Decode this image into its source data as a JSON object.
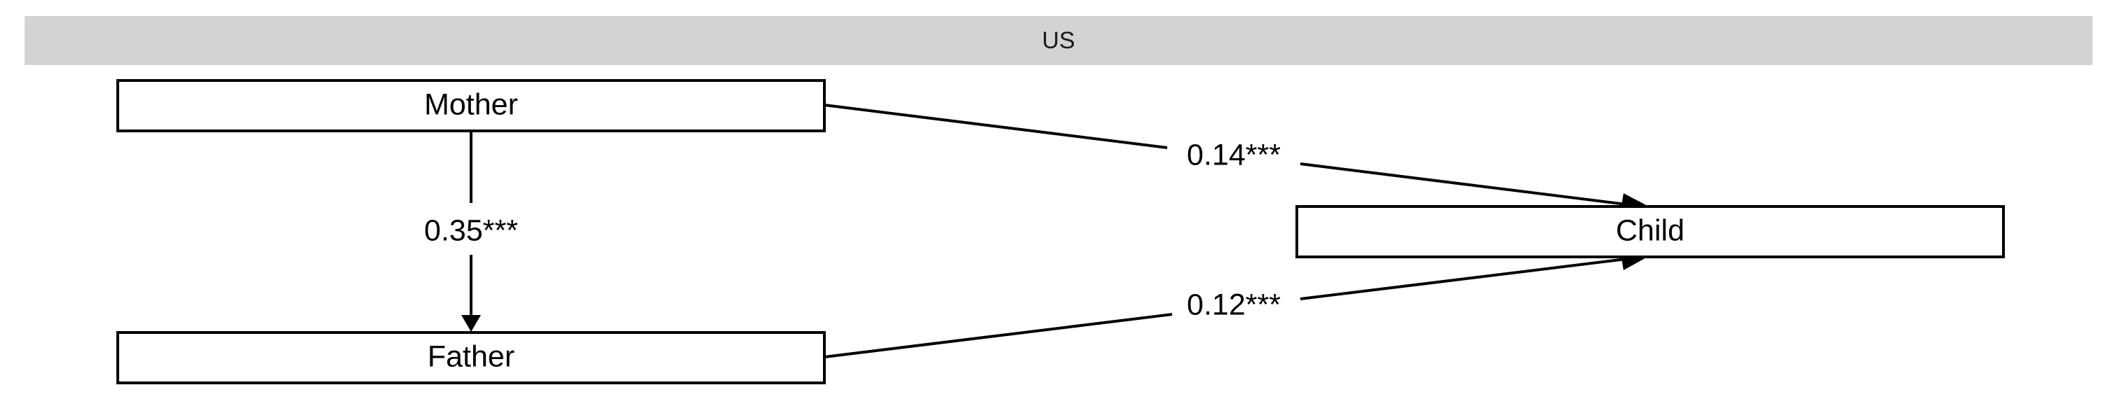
{
  "panel": {
    "strip_label": "US"
  },
  "nodes": {
    "mother": "Mother",
    "father": "Father",
    "child": "Child"
  },
  "edges": {
    "mother_father": "0.35***",
    "mother_child": "0.14***",
    "father_child": "0.12***"
  }
}
